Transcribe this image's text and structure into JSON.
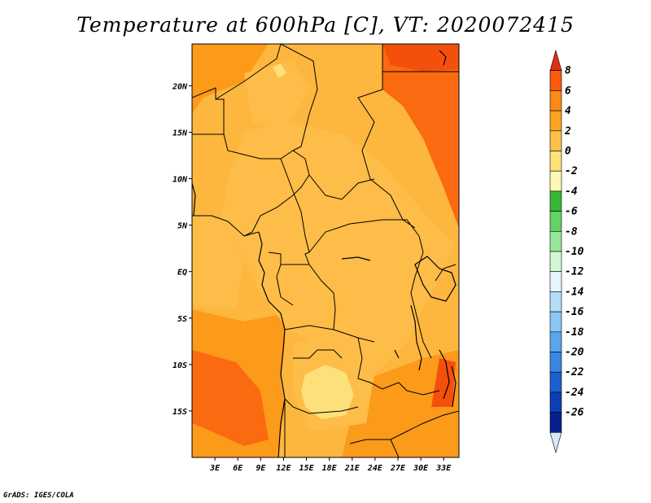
{
  "title": "Temperature at 600hPa [C], VT: 2020072415",
  "credit": "GrADS: IGES/COLA",
  "map": {
    "lon_range": [
      0,
      35
    ],
    "lat_range": [
      -20,
      24.5
    ],
    "x_ticks": [
      {
        "value": 3,
        "label": "3E"
      },
      {
        "value": 6,
        "label": "6E"
      },
      {
        "value": 9,
        "label": "9E"
      },
      {
        "value": 12,
        "label": "12E"
      },
      {
        "value": 15,
        "label": "15E"
      },
      {
        "value": 18,
        "label": "18E"
      },
      {
        "value": 21,
        "label": "21E"
      },
      {
        "value": 24,
        "label": "24E"
      },
      {
        "value": 27,
        "label": "27E"
      },
      {
        "value": 30,
        "label": "30E"
      },
      {
        "value": 33,
        "label": "33E"
      }
    ],
    "y_ticks": [
      {
        "value": 20,
        "label": "20N"
      },
      {
        "value": 15,
        "label": "15N"
      },
      {
        "value": 10,
        "label": "10N"
      },
      {
        "value": 5,
        "label": "5N"
      },
      {
        "value": 0,
        "label": "EQ"
      },
      {
        "value": -5,
        "label": "5S"
      },
      {
        "value": -10,
        "label": "10S"
      },
      {
        "value": -15,
        "label": "15S"
      }
    ],
    "background_color": "#fdb73e"
  },
  "colorbar": {
    "labels": [
      "8",
      "6",
      "4",
      "2",
      "0",
      "-2",
      "-4",
      "-6",
      "-8",
      "-10",
      "-12",
      "-14",
      "-16",
      "-18",
      "-20",
      "-22",
      "-24",
      "-26"
    ],
    "colors": [
      "#e03010",
      "#fa5a0a",
      "#fc8a14",
      "#fda520",
      "#fdc048",
      "#fde27a",
      "#fdf8b4",
      "#36b836",
      "#64d264",
      "#98e698",
      "#d2f8d2",
      "#e6f6fc",
      "#b4def8",
      "#8cc6f4",
      "#5aa6ec",
      "#3a86e0",
      "#1a60d0",
      "#0a40b4",
      "#06208c",
      "#d8e6fa"
    ]
  }
}
